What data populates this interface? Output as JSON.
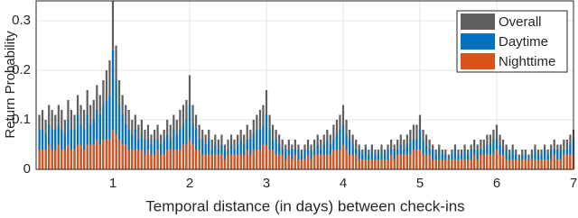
{
  "chart_data": {
    "type": "bar",
    "x_label": "Temporal distance (in days) between check-ins",
    "y_label": "Return Probability",
    "xlim": [
      0,
      7
    ],
    "xticks": [
      1,
      2,
      3,
      4,
      5,
      6,
      7
    ],
    "ylim": [
      0,
      0.34
    ],
    "yticks": [
      0,
      0.1,
      0.2,
      0.3
    ],
    "grid": true,
    "legend": "upper right",
    "x": [
      0.042,
      0.083,
      0.125,
      0.167,
      0.208,
      0.25,
      0.292,
      0.333,
      0.375,
      0.417,
      0.458,
      0.5,
      0.542,
      0.583,
      0.625,
      0.667,
      0.708,
      0.75,
      0.792,
      0.833,
      0.875,
      0.917,
      0.958,
      1,
      1.042,
      1.083,
      1.125,
      1.167,
      1.208,
      1.25,
      1.292,
      1.333,
      1.375,
      1.417,
      1.458,
      1.5,
      1.542,
      1.583,
      1.625,
      1.667,
      1.708,
      1.75,
      1.792,
      1.833,
      1.875,
      1.917,
      1.958,
      2,
      2.042,
      2.083,
      2.125,
      2.167,
      2.208,
      2.25,
      2.292,
      2.333,
      2.375,
      2.417,
      2.458,
      2.5,
      2.542,
      2.583,
      2.625,
      2.667,
      2.708,
      2.75,
      2.792,
      2.833,
      2.875,
      2.917,
      2.958,
      3,
      3.042,
      3.083,
      3.125,
      3.167,
      3.208,
      3.25,
      3.292,
      3.333,
      3.375,
      3.417,
      3.458,
      3.5,
      3.542,
      3.583,
      3.625,
      3.667,
      3.708,
      3.75,
      3.792,
      3.833,
      3.875,
      3.917,
      3.958,
      4,
      4.042,
      4.083,
      4.125,
      4.167,
      4.208,
      4.25,
      4.292,
      4.333,
      4.375,
      4.417,
      4.458,
      4.5,
      4.542,
      4.583,
      4.625,
      4.667,
      4.708,
      4.75,
      4.792,
      4.833,
      4.875,
      4.917,
      4.958,
      5,
      5.042,
      5.083,
      5.125,
      5.167,
      5.208,
      5.25,
      5.292,
      5.333,
      5.375,
      5.417,
      5.458,
      5.5,
      5.542,
      5.583,
      5.625,
      5.667,
      5.708,
      5.75,
      5.792,
      5.833,
      5.875,
      5.917,
      5.958,
      6,
      6.042,
      6.083,
      6.125,
      6.167,
      6.208,
      6.25,
      6.292,
      6.333,
      6.375,
      6.417,
      6.458,
      6.5,
      6.542,
      6.583,
      6.625,
      6.667,
      6.708,
      6.75,
      6.792,
      6.833,
      6.875,
      6.917,
      6.958,
      7
    ],
    "series": [
      {
        "name": "Overall",
        "color": "#5f5f5f",
        "values": [
          0.11,
          0.12,
          0.1,
          0.13,
          0.12,
          0.11,
          0.13,
          0.12,
          0.1,
          0.14,
          0.12,
          0.11,
          0.15,
          0.13,
          0.12,
          0.16,
          0.13,
          0.14,
          0.17,
          0.15,
          0.18,
          0.2,
          0.22,
          0.34,
          0.25,
          0.18,
          0.15,
          0.13,
          0.12,
          0.1,
          0.11,
          0.09,
          0.1,
          0.08,
          0.09,
          0.07,
          0.08,
          0.09,
          0.07,
          0.08,
          0.1,
          0.09,
          0.11,
          0.1,
          0.12,
          0.13,
          0.14,
          0.19,
          0.13,
          0.11,
          0.09,
          0.08,
          0.07,
          0.08,
          0.06,
          0.07,
          0.06,
          0.07,
          0.05,
          0.06,
          0.07,
          0.06,
          0.07,
          0.08,
          0.07,
          0.09,
          0.08,
          0.1,
          0.11,
          0.12,
          0.13,
          0.16,
          0.11,
          0.09,
          0.08,
          0.07,
          0.06,
          0.05,
          0.06,
          0.05,
          0.06,
          0.05,
          0.04,
          0.05,
          0.06,
          0.05,
          0.06,
          0.07,
          0.06,
          0.07,
          0.08,
          0.07,
          0.09,
          0.1,
          0.11,
          0.13,
          0.1,
          0.08,
          0.07,
          0.06,
          0.05,
          0.04,
          0.05,
          0.04,
          0.05,
          0.04,
          0.04,
          0.05,
          0.04,
          0.05,
          0.06,
          0.05,
          0.06,
          0.07,
          0.06,
          0.07,
          0.08,
          0.09,
          0.09,
          0.11,
          0.08,
          0.07,
          0.06,
          0.05,
          0.04,
          0.05,
          0.04,
          0.04,
          0.03,
          0.04,
          0.05,
          0.04,
          0.04,
          0.05,
          0.04,
          0.05,
          0.06,
          0.05,
          0.06,
          0.06,
          0.07,
          0.07,
          0.08,
          0.09,
          0.07,
          0.06,
          0.05,
          0.04,
          0.05,
          0.04,
          0.03,
          0.04,
          0.04,
          0.03,
          0.04,
          0.05,
          0.04,
          0.04,
          0.05,
          0.04,
          0.05,
          0.06,
          0.05,
          0.05,
          0.06,
          0.06,
          0.07,
          0.08
        ]
      },
      {
        "name": "Daytime",
        "color": "#0072bd",
        "values": [
          0.08,
          0.08,
          0.07,
          0.09,
          0.08,
          0.08,
          0.09,
          0.08,
          0.07,
          0.1,
          0.08,
          0.08,
          0.11,
          0.09,
          0.08,
          0.11,
          0.09,
          0.1,
          0.12,
          0.11,
          0.13,
          0.14,
          0.15,
          0.24,
          0.18,
          0.13,
          0.11,
          0.09,
          0.08,
          0.07,
          0.08,
          0.06,
          0.07,
          0.06,
          0.06,
          0.05,
          0.06,
          0.06,
          0.05,
          0.06,
          0.07,
          0.06,
          0.08,
          0.07,
          0.08,
          0.09,
          0.1,
          0.13,
          0.09,
          0.08,
          0.06,
          0.06,
          0.05,
          0.06,
          0.04,
          0.05,
          0.04,
          0.05,
          0.04,
          0.04,
          0.05,
          0.04,
          0.05,
          0.06,
          0.05,
          0.06,
          0.06,
          0.07,
          0.08,
          0.08,
          0.09,
          0.11,
          0.08,
          0.06,
          0.06,
          0.05,
          0.04,
          0.04,
          0.04,
          0.04,
          0.04,
          0.04,
          0.03,
          0.04,
          0.04,
          0.04,
          0.04,
          0.05,
          0.04,
          0.05,
          0.06,
          0.05,
          0.06,
          0.07,
          0.08,
          0.09,
          0.07,
          0.06,
          0.05,
          0.04,
          0.04,
          0.03,
          0.04,
          0.03,
          0.04,
          0.03,
          0.03,
          0.04,
          0.03,
          0.04,
          0.04,
          0.04,
          0.04,
          0.05,
          0.04,
          0.05,
          0.06,
          0.06,
          0.06,
          0.08,
          0.06,
          0.05,
          0.04,
          0.04,
          0.03,
          0.04,
          0.03,
          0.03,
          0.02,
          0.03,
          0.04,
          0.03,
          0.03,
          0.04,
          0.03,
          0.04,
          0.04,
          0.04,
          0.04,
          0.04,
          0.05,
          0.05,
          0.06,
          0.06,
          0.05,
          0.04,
          0.04,
          0.03,
          0.04,
          0.03,
          0.02,
          0.03,
          0.03,
          0.02,
          0.03,
          0.04,
          0.03,
          0.03,
          0.04,
          0.03,
          0.04,
          0.04,
          0.04,
          0.04,
          0.04,
          0.04,
          0.05,
          0.06
        ]
      },
      {
        "name": "Nighttime",
        "color": "#d95319",
        "values": [
          0.04,
          0.04,
          0.04,
          0.05,
          0.04,
          0.04,
          0.05,
          0.04,
          0.04,
          0.05,
          0.04,
          0.04,
          0.05,
          0.05,
          0.04,
          0.05,
          0.05,
          0.05,
          0.06,
          0.05,
          0.06,
          0.06,
          0.06,
          0.08,
          0.07,
          0.06,
          0.05,
          0.05,
          0.04,
          0.04,
          0.04,
          0.04,
          0.04,
          0.03,
          0.04,
          0.03,
          0.03,
          0.04,
          0.03,
          0.03,
          0.04,
          0.04,
          0.04,
          0.04,
          0.04,
          0.05,
          0.05,
          0.06,
          0.05,
          0.04,
          0.04,
          0.03,
          0.03,
          0.03,
          0.03,
          0.03,
          0.03,
          0.03,
          0.02,
          0.03,
          0.03,
          0.03,
          0.03,
          0.03,
          0.03,
          0.04,
          0.03,
          0.04,
          0.04,
          0.04,
          0.05,
          0.05,
          0.04,
          0.04,
          0.03,
          0.03,
          0.03,
          0.02,
          0.03,
          0.02,
          0.03,
          0.02,
          0.02,
          0.02,
          0.03,
          0.02,
          0.03,
          0.03,
          0.03,
          0.03,
          0.03,
          0.03,
          0.04,
          0.04,
          0.04,
          0.05,
          0.04,
          0.03,
          0.03,
          0.03,
          0.02,
          0.02,
          0.02,
          0.02,
          0.02,
          0.02,
          0.02,
          0.02,
          0.02,
          0.02,
          0.03,
          0.02,
          0.03,
          0.03,
          0.03,
          0.03,
          0.03,
          0.04,
          0.04,
          0.04,
          0.03,
          0.03,
          0.03,
          0.02,
          0.02,
          0.02,
          0.02,
          0.02,
          0.02,
          0.02,
          0.02,
          0.02,
          0.02,
          0.02,
          0.02,
          0.02,
          0.03,
          0.02,
          0.03,
          0.03,
          0.03,
          0.03,
          0.03,
          0.04,
          0.03,
          0.03,
          0.02,
          0.02,
          0.02,
          0.02,
          0.02,
          0.02,
          0.02,
          0.02,
          0.02,
          0.02,
          0.02,
          0.02,
          0.02,
          0.02,
          0.02,
          0.03,
          0.02,
          0.02,
          0.03,
          0.03,
          0.03,
          0.03
        ]
      }
    ]
  }
}
